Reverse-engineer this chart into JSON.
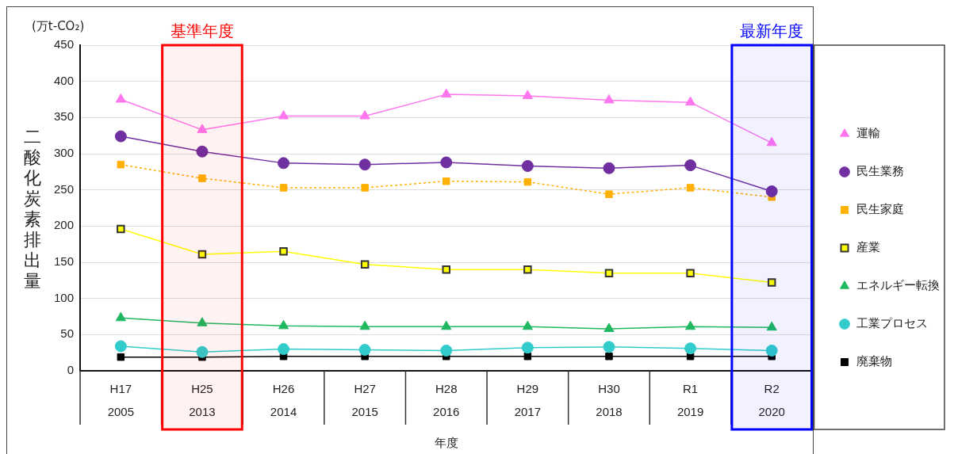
{
  "chart_data": {
    "type": "line",
    "xlabel": "年度",
    "ylabel": "二酸化炭素排出量",
    "annotations": [
      "(万t-CO₂)"
    ],
    "categories": [
      "H17\n2005",
      "H25\n2013",
      "H26\n2014",
      "H27\n2015",
      "H28\n2016",
      "H29\n2017",
      "H30\n2018",
      "R1\n2019",
      "R2\n2020"
    ],
    "series": [
      {
        "name": "運輸",
        "color": "#ff77ee",
        "marker": "triangle",
        "values": [
          375,
          333,
          352,
          352,
          382,
          380,
          374,
          371,
          315
        ]
      },
      {
        "name": "民生業務",
        "color": "#7030a0",
        "marker": "circle",
        "values": [
          324,
          303,
          287,
          285,
          288,
          283,
          280,
          284,
          248
        ]
      },
      {
        "name": "民生家庭",
        "color": "#ffb000",
        "marker": "square",
        "line_style": "dotted",
        "values": [
          285,
          266,
          253,
          253,
          262,
          261,
          244,
          253,
          240
        ]
      },
      {
        "name": "産業",
        "color": "#ffff00",
        "marker": "square",
        "values": [
          196,
          161,
          165,
          147,
          140,
          140,
          135,
          135,
          122
        ]
      },
      {
        "name": "エネルギー転換",
        "color": "#1fb860",
        "marker": "triangle",
        "values": [
          73,
          66,
          62,
          61,
          61,
          61,
          58,
          61,
          60
        ]
      },
      {
        "name": "工業プロセス",
        "color": "#33cccc",
        "marker": "circle",
        "values": [
          34,
          26,
          30,
          29,
          28,
          32,
          33,
          31,
          28
        ]
      },
      {
        "name": "廃棄物",
        "color": "#000000",
        "marker": "square",
        "values": [
          19,
          19,
          20,
          20,
          20,
          20,
          20,
          20,
          20
        ]
      }
    ],
    "ylim": [
      0,
      450
    ],
    "yticks": [
      0,
      50,
      100,
      150,
      200,
      250,
      300,
      350,
      400,
      450
    ],
    "grid": "y",
    "legend": "right",
    "bands": [
      {
        "axis": "x",
        "from": "H25\n2013",
        "to": "H25\n2013",
        "label": "基準年度",
        "color": "#ff0000"
      },
      {
        "axis": "x",
        "from": "R2\n2020",
        "to": "R2\n2020",
        "label": "最新年度",
        "color": "#0000ff"
      }
    ]
  }
}
